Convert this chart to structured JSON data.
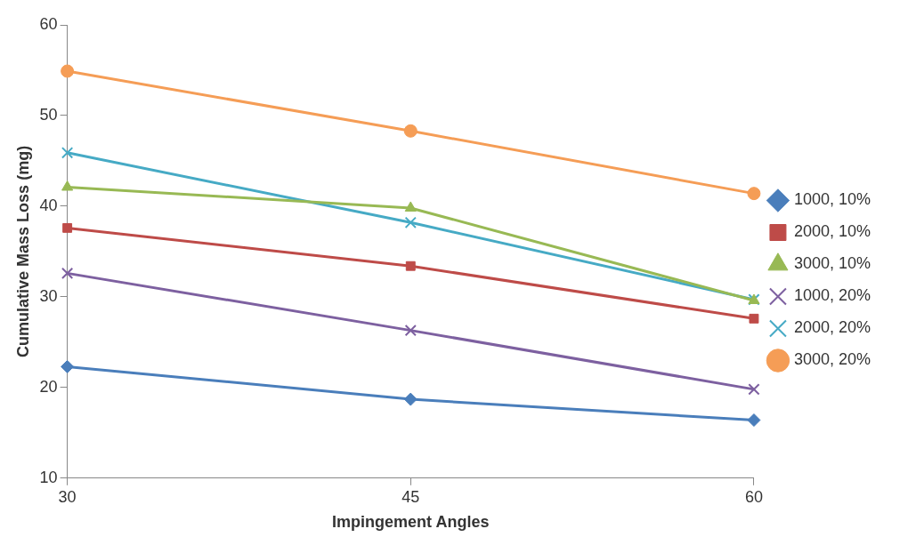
{
  "chart_data": {
    "type": "line",
    "xlabel": "Impingement Angles",
    "ylabel": "Cumulative Mass Loss (mg)",
    "categories": [
      "30",
      "45",
      "60"
    ],
    "ylim": [
      10,
      60
    ],
    "yticks": [
      10,
      20,
      30,
      40,
      50,
      60
    ],
    "grid": false,
    "legend": "right",
    "series": [
      {
        "name": "1000, 10%",
        "color": "#4a7ebb",
        "marker": "diamond",
        "values": [
          22.3,
          18.7,
          16.4
        ]
      },
      {
        "name": "2000, 10%",
        "color": "#be4b48",
        "marker": "square",
        "values": [
          37.6,
          33.4,
          27.6
        ]
      },
      {
        "name": "3000, 10%",
        "color": "#98b954",
        "marker": "triangle",
        "values": [
          42.1,
          39.8,
          29.6
        ]
      },
      {
        "name": "1000, 20%",
        "color": "#7d60a0",
        "marker": "cross",
        "values": [
          32.6,
          26.3,
          19.8
        ]
      },
      {
        "name": "2000, 20%",
        "color": "#46aac5",
        "marker": "cross",
        "values": [
          45.9,
          38.2,
          29.7
        ]
      },
      {
        "name": "3000, 20%",
        "color": "#f59d56",
        "marker": "circle",
        "values": [
          54.9,
          48.3,
          41.4
        ]
      }
    ]
  }
}
